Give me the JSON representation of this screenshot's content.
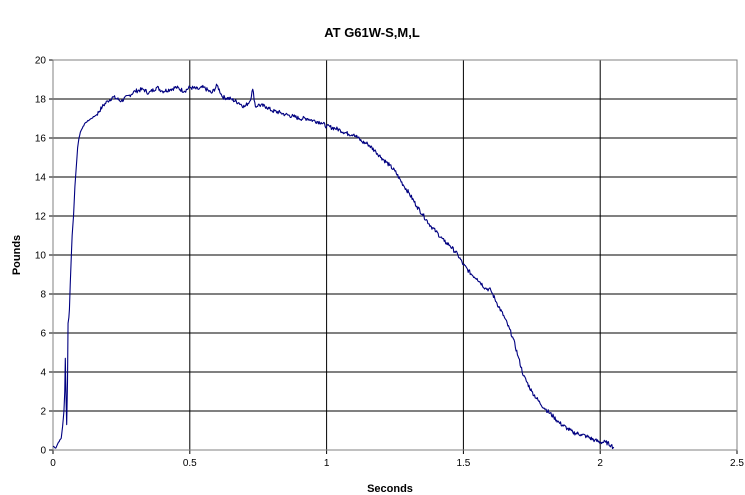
{
  "chart_data": {
    "type": "line",
    "title": "AT G61W-S,M,L",
    "xlabel": "Seconds",
    "ylabel": "Pounds",
    "xlim": [
      0,
      2.5
    ],
    "ylim": [
      0,
      20
    ],
    "x_ticks": [
      "0",
      "0.5",
      "1",
      "1.5",
      "2",
      "2.5"
    ],
    "y_ticks": [
      "0",
      "2",
      "4",
      "6",
      "8",
      "10",
      "12",
      "14",
      "16",
      "18",
      "20"
    ],
    "grid": true,
    "legend": "none",
    "series": [
      {
        "color": "#000080",
        "x": [
          0,
          0.01,
          0.02,
          0.03,
          0.035,
          0.04,
          0.043,
          0.045,
          0.048,
          0.05,
          0.053,
          0.055,
          0.058,
          0.06,
          0.063,
          0.066,
          0.07,
          0.075,
          0.08,
          0.085,
          0.09,
          0.095,
          0.1,
          0.11,
          0.12,
          0.14,
          0.16,
          0.18,
          0.2,
          0.22,
          0.25,
          0.28,
          0.3,
          0.33,
          0.35,
          0.38,
          0.4,
          0.43,
          0.45,
          0.48,
          0.5,
          0.53,
          0.55,
          0.58,
          0.6,
          0.62,
          0.65,
          0.68,
          0.7,
          0.72,
          0.73,
          0.74,
          0.75,
          0.78,
          0.8,
          0.83,
          0.85,
          0.88,
          0.9,
          0.93,
          0.95,
          0.98,
          1.0,
          1.03,
          1.05,
          1.08,
          1.1,
          1.13,
          1.15,
          1.18,
          1.2,
          1.23,
          1.25,
          1.28,
          1.3,
          1.33,
          1.35,
          1.38,
          1.4,
          1.43,
          1.45,
          1.48,
          1.5,
          1.53,
          1.55,
          1.58,
          1.6,
          1.62,
          1.65,
          1.68,
          1.7,
          1.72,
          1.75,
          1.78,
          1.8,
          1.83,
          1.85,
          1.88,
          1.9,
          1.93,
          1.95,
          1.98,
          2.0,
          2.02,
          2.04,
          2.05
        ],
        "y": [
          0.2,
          0.1,
          0.4,
          0.6,
          1.2,
          2.0,
          3.0,
          4.7,
          2.5,
          1.3,
          3.5,
          6.5,
          6.8,
          7.2,
          8.5,
          9.6,
          11.0,
          12.0,
          13.5,
          14.5,
          15.5,
          16.0,
          16.3,
          16.6,
          16.8,
          17.0,
          17.2,
          17.6,
          17.9,
          18.1,
          17.9,
          18.2,
          18.4,
          18.5,
          18.3,
          18.6,
          18.4,
          18.5,
          18.6,
          18.4,
          18.6,
          18.5,
          18.6,
          18.3,
          18.7,
          18.1,
          18.0,
          17.8,
          17.6,
          17.9,
          18.5,
          17.6,
          17.7,
          17.6,
          17.4,
          17.3,
          17.2,
          17.1,
          17.0,
          17.0,
          16.9,
          16.8,
          16.6,
          16.5,
          16.4,
          16.2,
          16.2,
          15.8,
          15.7,
          15.3,
          15.0,
          14.6,
          14.3,
          13.6,
          13.2,
          12.5,
          12.1,
          11.5,
          11.2,
          10.7,
          10.5,
          10.0,
          9.5,
          9.0,
          8.8,
          8.3,
          8.2,
          7.6,
          6.8,
          5.8,
          4.8,
          3.8,
          3.0,
          2.4,
          2.1,
          1.7,
          1.4,
          1.1,
          0.9,
          0.8,
          0.7,
          0.5,
          0.4,
          0.4,
          0.25,
          0.1
        ]
      }
    ]
  }
}
